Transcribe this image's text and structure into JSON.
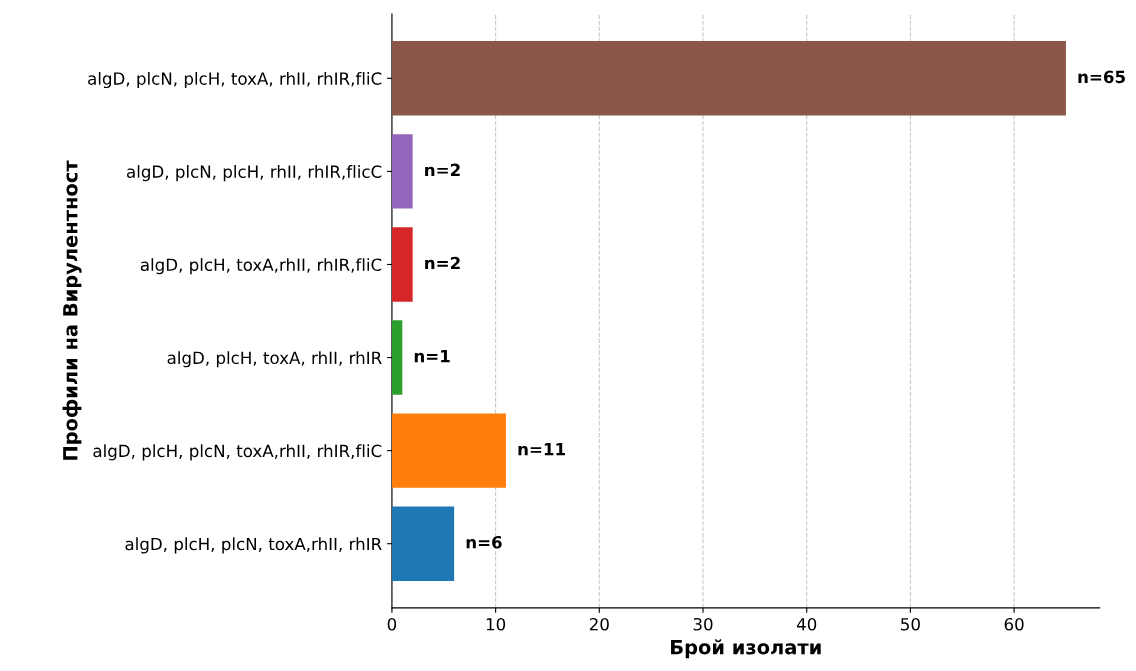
{
  "chart_data": {
    "type": "bar",
    "orientation": "horizontal",
    "xlabel": "Брой изолати",
    "ylabel": "Профили на Вирулентност",
    "categories": [
      "algD, plcN, plcH, toxA, rhII, rhIR,fliC",
      "algD, plcN, plcH, rhII, rhIR,flicC",
      "algD, plcH, toxA,rhII, rhIR,fliC",
      "algD, plcH, toxA, rhII, rhIR",
      "algD, plcH, plcN, toxA,rhII, rhIR,fliC",
      "algD, plcH, plcN, toxA,rhII, rhIR"
    ],
    "values": [
      65,
      2,
      2,
      1,
      11,
      6
    ],
    "colors": [
      "#8c564b",
      "#9467bd",
      "#d62728",
      "#2ca02c",
      "#ff7f0e",
      "#1f77b4"
    ],
    "value_labels": [
      "n=65",
      "n=2",
      "n=2",
      "n=1",
      "n=11",
      "n=6"
    ],
    "xlim": [
      0,
      68.25
    ],
    "xticks": [
      0,
      10,
      20,
      30,
      40,
      50,
      60
    ],
    "grid": "x",
    "line_style": "dashed"
  }
}
